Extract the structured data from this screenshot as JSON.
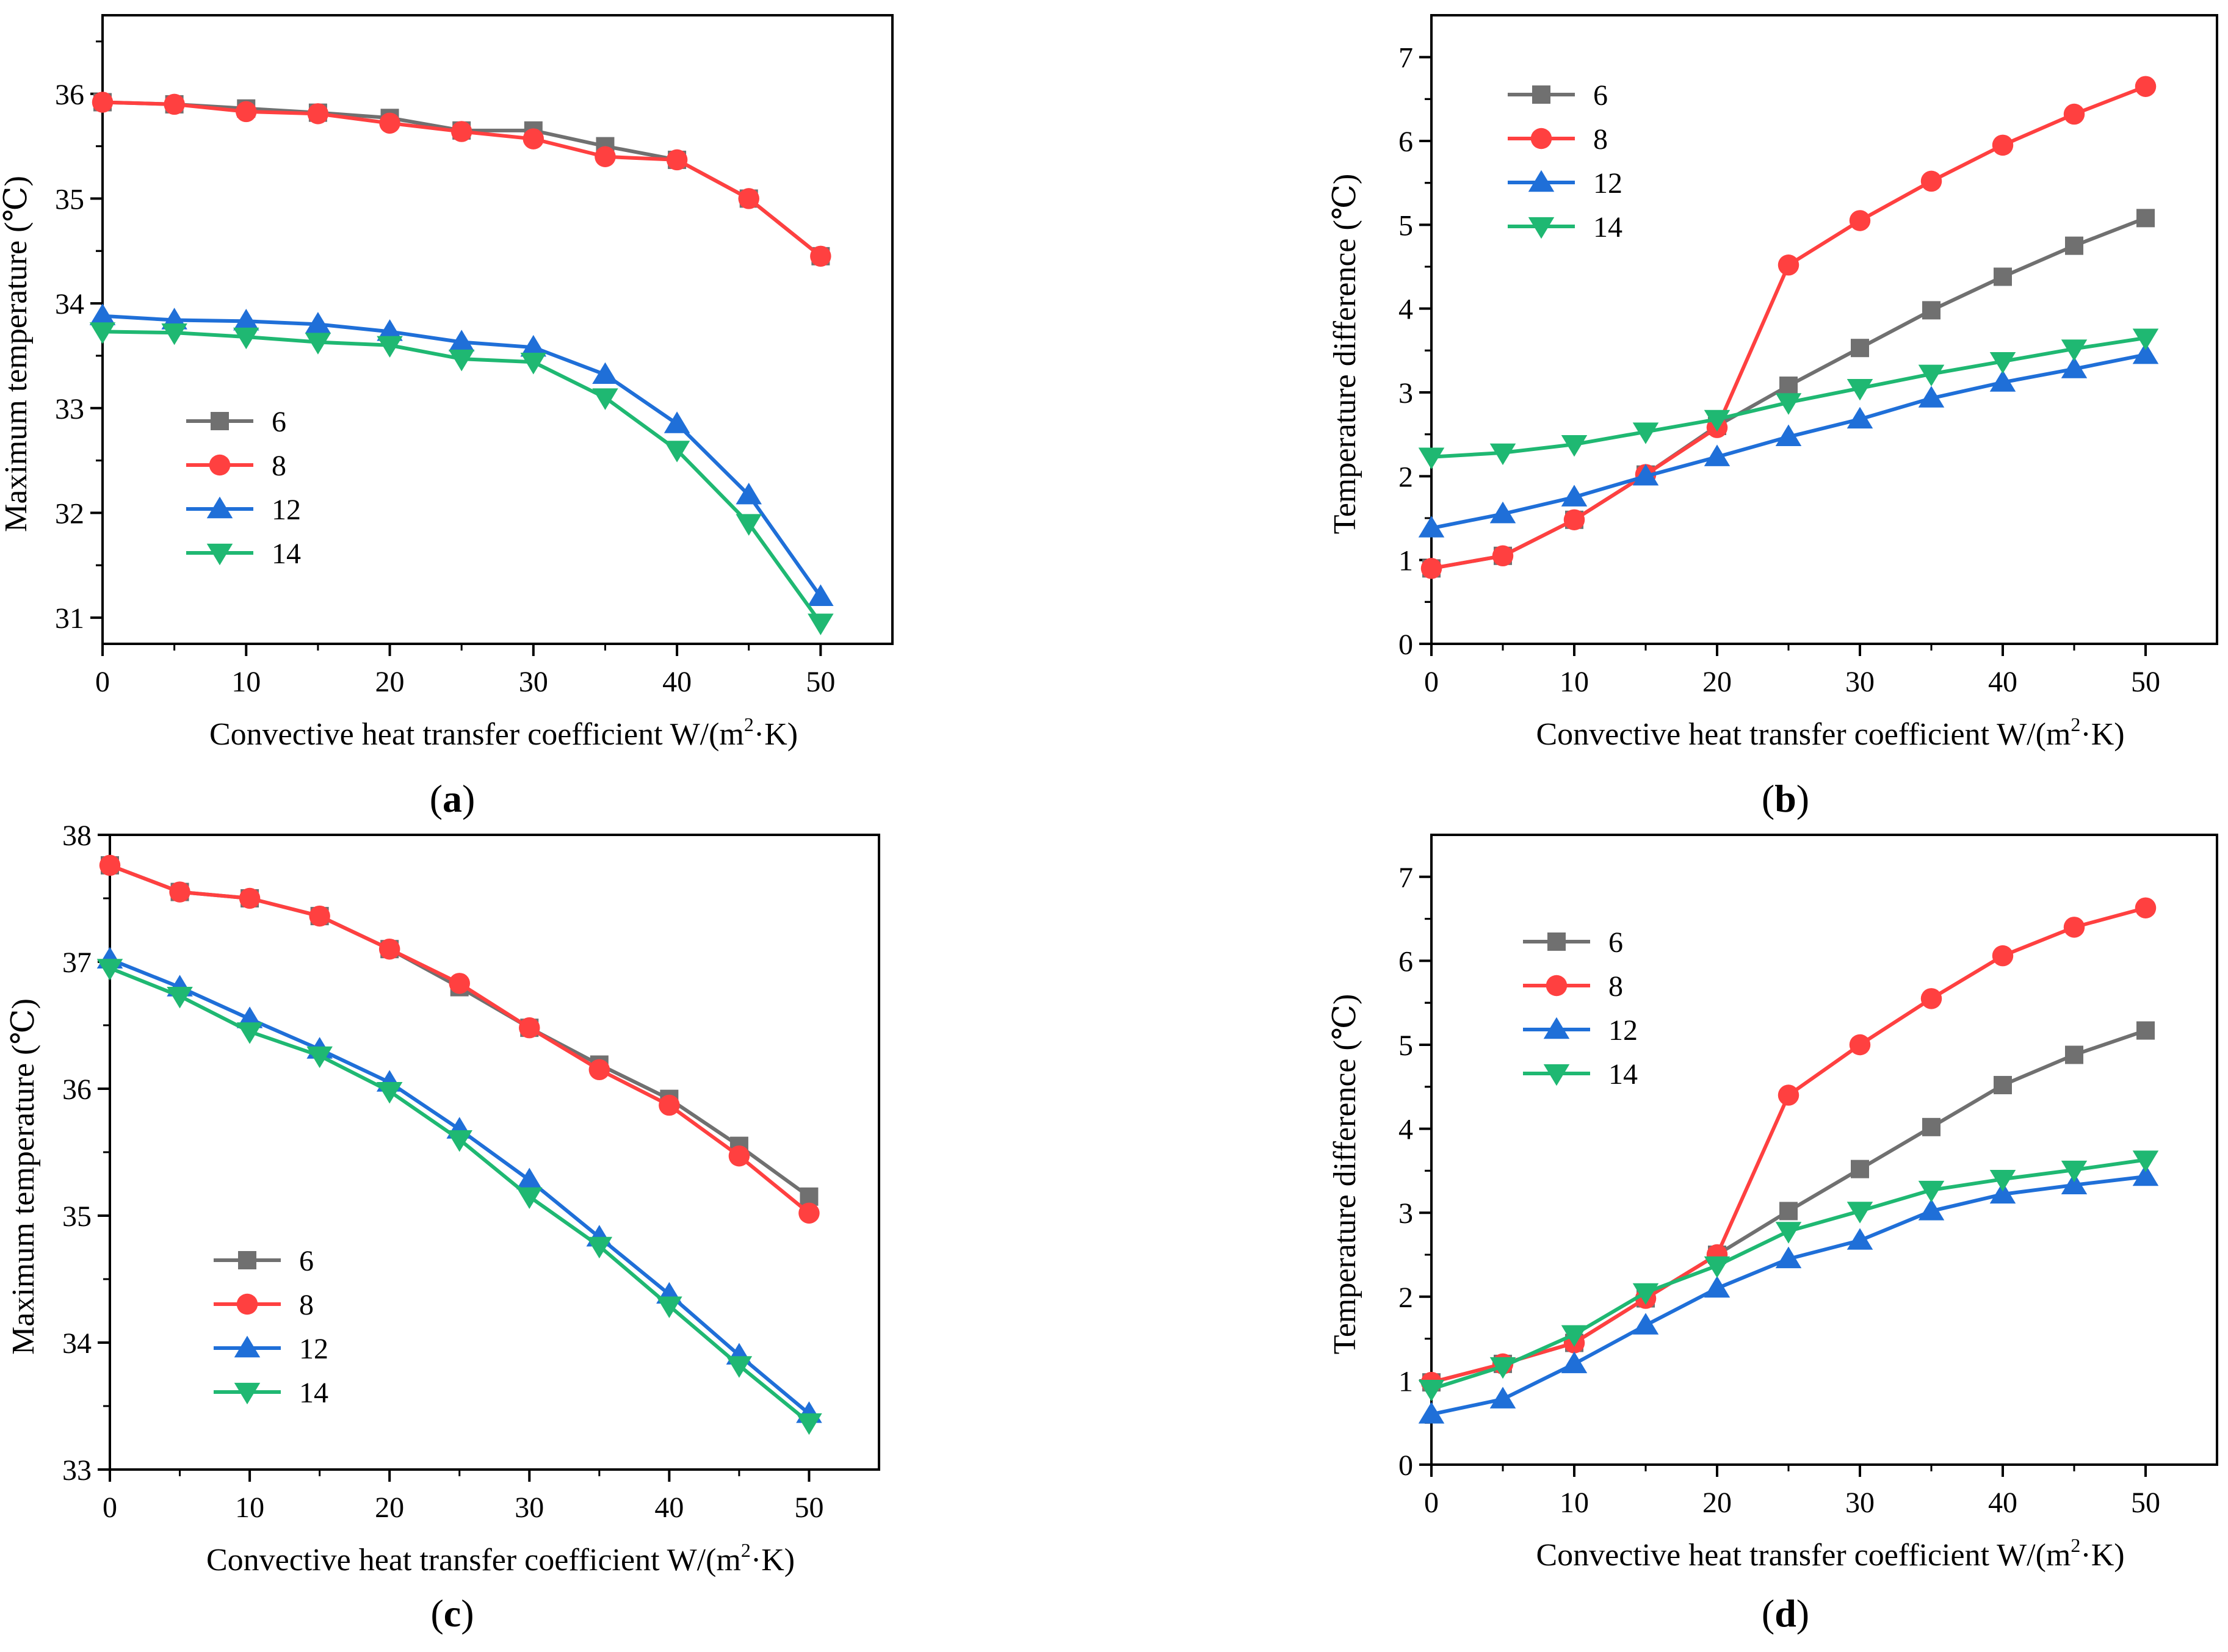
{
  "chart_data": [
    {
      "type": "line",
      "panel_label": "a",
      "xlabel": "Convective heat transfer coefficient W/(m",
      "xlabel_sup": "2",
      "xlabel_end": "·K)",
      "ylabel": "Maximum temperature  (℃)",
      "xlim": [
        0,
        55
      ],
      "ylim": [
        30.75,
        36.75
      ],
      "xticks": [
        0,
        10,
        20,
        30,
        40,
        50
      ],
      "yticks": [
        31,
        32,
        33,
        34,
        35,
        36
      ],
      "x": [
        0,
        5,
        10,
        15,
        20,
        25,
        30,
        35,
        40,
        45,
        50
      ],
      "legend_position": "lower-left",
      "series": [
        {
          "name": "6",
          "color": "#707070",
          "marker": "square",
          "values": [
            35.92,
            35.9,
            35.86,
            35.82,
            35.77,
            35.65,
            35.65,
            35.5,
            35.37,
            35.0,
            34.45
          ]
        },
        {
          "name": "8",
          "color": "#ff4040",
          "marker": "circle",
          "values": [
            35.92,
            35.9,
            35.83,
            35.81,
            35.72,
            35.64,
            35.57,
            35.4,
            35.37,
            35.0,
            34.45
          ]
        },
        {
          "name": "12",
          "color": "#1f6fd8",
          "marker": "triangle-up",
          "values": [
            33.88,
            33.84,
            33.83,
            33.8,
            33.73,
            33.63,
            33.58,
            33.32,
            32.85,
            32.17,
            31.2
          ]
        },
        {
          "name": "14",
          "color": "#1fb872",
          "marker": "triangle-down",
          "values": [
            33.73,
            33.72,
            33.68,
            33.63,
            33.6,
            33.47,
            33.44,
            33.1,
            32.6,
            31.9,
            30.95
          ]
        }
      ]
    },
    {
      "type": "line",
      "panel_label": "b",
      "xlabel": "Convective heat transfer coefficient W/(m",
      "xlabel_sup": "2",
      "xlabel_end": "·K)",
      "ylabel": "Temperature difference  (℃)",
      "xlim": [
        0,
        55
      ],
      "ylim": [
        0,
        7.5
      ],
      "xticks": [
        0,
        10,
        20,
        30,
        40,
        50
      ],
      "yticks": [
        0,
        1,
        2,
        3,
        4,
        5,
        6,
        7
      ],
      "x": [
        0,
        5,
        10,
        15,
        20,
        25,
        30,
        35,
        40,
        45,
        50
      ],
      "legend_position": "top-left",
      "series": [
        {
          "name": "6",
          "color": "#707070",
          "marker": "square",
          "values": [
            0.9,
            1.05,
            1.48,
            2.02,
            2.6,
            3.08,
            3.53,
            3.98,
            4.38,
            4.75,
            5.08
          ]
        },
        {
          "name": "8",
          "color": "#ff4040",
          "marker": "circle",
          "values": [
            0.9,
            1.05,
            1.48,
            2.02,
            2.58,
            4.52,
            5.05,
            5.52,
            5.95,
            6.32,
            6.65
          ]
        },
        {
          "name": "12",
          "color": "#1f6fd8",
          "marker": "triangle-up",
          "values": [
            1.38,
            1.55,
            1.75,
            2.0,
            2.23,
            2.47,
            2.68,
            2.93,
            3.12,
            3.28,
            3.45
          ]
        },
        {
          "name": "14",
          "color": "#1fb872",
          "marker": "triangle-down",
          "values": [
            2.23,
            2.28,
            2.38,
            2.53,
            2.68,
            2.88,
            3.05,
            3.22,
            3.37,
            3.52,
            3.65
          ]
        }
      ]
    },
    {
      "type": "line",
      "panel_label": "c",
      "xlabel": "Convective heat transfer coefficient W/(m",
      "xlabel_sup": "2",
      "xlabel_end": "·K)",
      "ylabel": "Maximum temperature  (℃)",
      "xlim": [
        0,
        55
      ],
      "ylim": [
        33,
        38
      ],
      "xticks": [
        0,
        10,
        20,
        30,
        40,
        50
      ],
      "yticks": [
        33,
        34,
        35,
        36,
        37,
        38
      ],
      "x": [
        0,
        5,
        10,
        15,
        20,
        25,
        30,
        35,
        40,
        45,
        50
      ],
      "legend_position": "lower-left",
      "series": [
        {
          "name": "6",
          "color": "#707070",
          "marker": "square",
          "values": [
            37.76,
            37.55,
            37.5,
            37.36,
            37.1,
            36.8,
            36.48,
            36.19,
            35.92,
            35.55,
            35.15
          ]
        },
        {
          "name": "8",
          "color": "#ff4040",
          "marker": "circle",
          "values": [
            37.76,
            37.55,
            37.5,
            37.36,
            37.1,
            36.83,
            36.48,
            36.15,
            35.87,
            35.47,
            35.02
          ]
        },
        {
          "name": "12",
          "color": "#1f6fd8",
          "marker": "triangle-up",
          "values": [
            37.02,
            36.8,
            36.55,
            36.31,
            36.05,
            35.68,
            35.28,
            34.83,
            34.38,
            33.9,
            33.44
          ]
        },
        {
          "name": "14",
          "color": "#1fb872",
          "marker": "triangle-down",
          "values": [
            36.95,
            36.73,
            36.45,
            36.26,
            35.98,
            35.6,
            35.15,
            34.76,
            34.29,
            33.82,
            33.37
          ]
        }
      ]
    },
    {
      "type": "line",
      "panel_label": "d",
      "xlabel": "Convective heat transfer coefficient W/(m",
      "xlabel_sup": "2",
      "xlabel_end": "·K)",
      "ylabel": "Temperature difference  (℃)",
      "xlim": [
        0,
        55
      ],
      "ylim": [
        0,
        7.5
      ],
      "xticks": [
        0,
        10,
        20,
        30,
        40,
        50
      ],
      "yticks": [
        0,
        1,
        2,
        3,
        4,
        5,
        6,
        7
      ],
      "x": [
        0,
        5,
        10,
        15,
        20,
        25,
        30,
        35,
        40,
        45,
        50
      ],
      "legend_position": "top-left",
      "series": [
        {
          "name": "6",
          "color": "#707070",
          "marker": "square",
          "values": [
            0.98,
            1.2,
            1.45,
            1.98,
            2.5,
            3.02,
            3.52,
            4.02,
            4.52,
            4.88,
            5.17
          ]
        },
        {
          "name": "8",
          "color": "#ff4040",
          "marker": "circle",
          "values": [
            0.98,
            1.2,
            1.45,
            1.98,
            2.5,
            4.4,
            5.0,
            5.55,
            6.06,
            6.4,
            6.63
          ]
        },
        {
          "name": "12",
          "color": "#1f6fd8",
          "marker": "triangle-up",
          "values": [
            0.6,
            0.78,
            1.2,
            1.66,
            2.1,
            2.45,
            2.67,
            3.02,
            3.22,
            3.33,
            3.43
          ]
        },
        {
          "name": "14",
          "color": "#1fb872",
          "marker": "triangle-down",
          "values": [
            0.9,
            1.17,
            1.55,
            2.05,
            2.37,
            2.78,
            3.02,
            3.27,
            3.4,
            3.51,
            3.63
          ]
        }
      ]
    }
  ]
}
